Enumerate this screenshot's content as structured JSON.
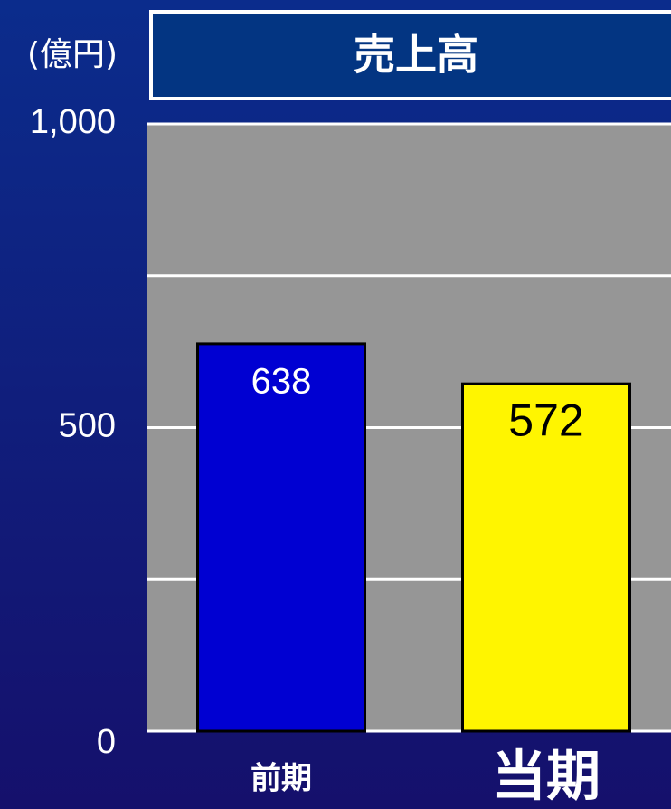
{
  "chart_data": {
    "type": "bar",
    "title": "売上高",
    "unit_label": "(億円)",
    "categories": [
      "前期",
      "当期"
    ],
    "values": [
      638,
      572
    ],
    "colors": [
      "#0000d2",
      "#fff500"
    ],
    "ylim": [
      0,
      1000
    ],
    "yticks": [
      0,
      500,
      {
        "value": 1000,
        "label": "1,000"
      }
    ],
    "grid_lines": [
      0,
      250,
      500,
      750,
      1000
    ],
    "grid": true
  }
}
